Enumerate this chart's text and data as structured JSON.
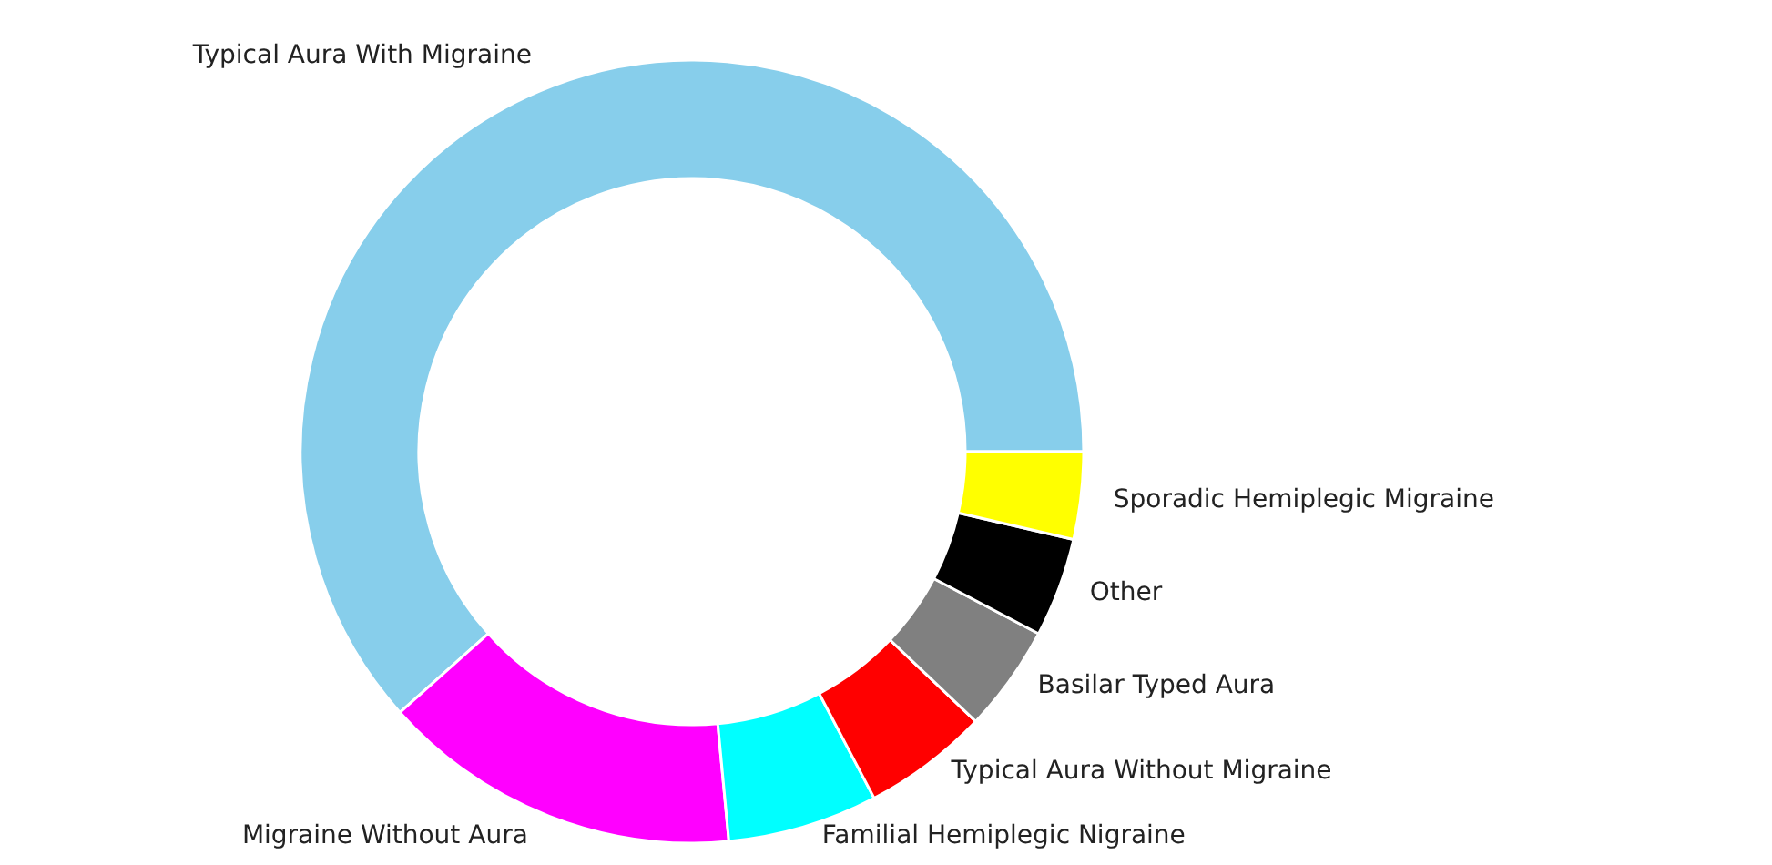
{
  "chart_data": {
    "type": "donut",
    "categories": [
      "Typical Aura With Migraine",
      "Migraine Without Aura",
      "Familial Hemiplegic Nigraine",
      "Typical Aura Without Migraine",
      "Basilar Typed Aura",
      "Other",
      "Sporadic Hemiplegic Migraine"
    ],
    "values": [
      61.6,
      14.9,
      6.2,
      5.2,
      4.4,
      4.1,
      3.6
    ],
    "colors": [
      "#87ceeb",
      "#ff00ff",
      "#00ffff",
      "#ff0000",
      "#808080",
      "#000000",
      "#ffff00"
    ],
    "legend": false
  }
}
